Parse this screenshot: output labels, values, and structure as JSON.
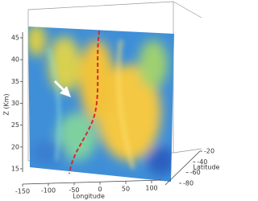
{
  "chart_data": {
    "type": "surface3d",
    "xlabel": "Longitude",
    "ylabel": "Latitude",
    "zlabel": "Z (Km)",
    "xlim": [
      -150,
      100
    ],
    "xticks": [
      -150,
      -100,
      -50,
      0,
      50,
      100
    ],
    "ylim": [
      -80,
      -20
    ],
    "yticks": [
      -80,
      -60,
      -40,
      -20
    ],
    "zlim": [
      15,
      45
    ],
    "zticks": [
      15,
      20,
      25,
      30,
      35,
      40,
      45
    ]
  }
}
